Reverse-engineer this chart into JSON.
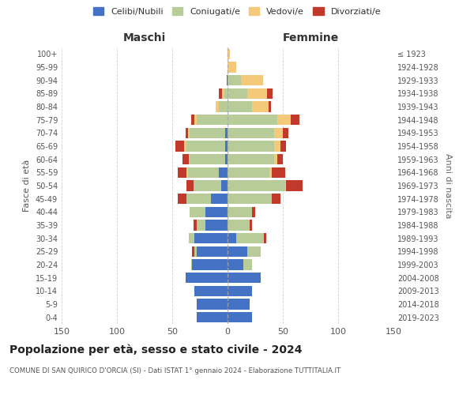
{
  "age_groups": [
    "100+",
    "95-99",
    "90-94",
    "85-89",
    "80-84",
    "75-79",
    "70-74",
    "65-69",
    "60-64",
    "55-59",
    "50-54",
    "45-49",
    "40-44",
    "35-39",
    "30-34",
    "25-29",
    "20-24",
    "15-19",
    "10-14",
    "5-9",
    "0-4"
  ],
  "birth_years": [
    "≤ 1923",
    "1924-1928",
    "1929-1933",
    "1934-1938",
    "1939-1943",
    "1944-1948",
    "1949-1953",
    "1954-1958",
    "1959-1963",
    "1964-1968",
    "1969-1973",
    "1974-1978",
    "1979-1983",
    "1984-1988",
    "1989-1993",
    "1994-1998",
    "1999-2003",
    "2004-2008",
    "2009-2013",
    "2014-2018",
    "2019-2023"
  ],
  "colors": {
    "celibi": "#4472C4",
    "coniugati": "#B8CC9A",
    "vedovi": "#F5C97A",
    "divorziati": "#C0392B"
  },
  "xlim": 150,
  "title": "Popolazione per età, sesso e stato civile - 2024",
  "subtitle": "COMUNE DI SAN QUIRICO D'ORCIA (SI) - Dati ISTAT 1° gennaio 2024 - Elaborazione TUTTITALIA.IT",
  "xlabel_left": "Maschi",
  "xlabel_right": "Femmine",
  "ylabel": "Fasce di età",
  "ylabel_right": "Anni di nascita",
  "legend_labels": [
    "Celibi/Nubili",
    "Coniugati/e",
    "Vedovi/e",
    "Divorziati/e"
  ],
  "bg_color": "#ffffff",
  "grid_color": "#cccccc",
  "m_cel": [
    28,
    28,
    30,
    38,
    32,
    28,
    30,
    20,
    20,
    15,
    6,
    8,
    2,
    2,
    2,
    0,
    0,
    0,
    0,
    0,
    0
  ],
  "m_con": [
    0,
    0,
    0,
    0,
    1,
    2,
    5,
    8,
    14,
    22,
    25,
    28,
    32,
    35,
    32,
    28,
    8,
    3,
    0,
    0,
    0
  ],
  "m_ved": [
    0,
    0,
    0,
    0,
    0,
    0,
    0,
    0,
    0,
    0,
    0,
    1,
    1,
    2,
    2,
    2,
    3,
    2,
    0,
    0,
    0
  ],
  "m_div": [
    0,
    0,
    0,
    0,
    0,
    2,
    0,
    3,
    0,
    8,
    6,
    8,
    6,
    8,
    2,
    3,
    0,
    3,
    1,
    0,
    0
  ],
  "f_cel": [
    22,
    20,
    22,
    30,
    14,
    18,
    8,
    0,
    0,
    0,
    0,
    0,
    0,
    0,
    0,
    0,
    0,
    0,
    0,
    0,
    0
  ],
  "f_con": [
    0,
    0,
    0,
    0,
    8,
    12,
    25,
    20,
    22,
    40,
    52,
    38,
    42,
    42,
    42,
    45,
    22,
    18,
    12,
    0,
    0
  ],
  "f_ved": [
    0,
    0,
    0,
    0,
    0,
    0,
    0,
    0,
    0,
    0,
    1,
    2,
    3,
    6,
    8,
    12,
    15,
    18,
    20,
    8,
    2
  ],
  "f_div": [
    0,
    0,
    0,
    0,
    0,
    0,
    2,
    2,
    3,
    8,
    15,
    12,
    5,
    5,
    5,
    8,
    2,
    5,
    0,
    0,
    0
  ]
}
